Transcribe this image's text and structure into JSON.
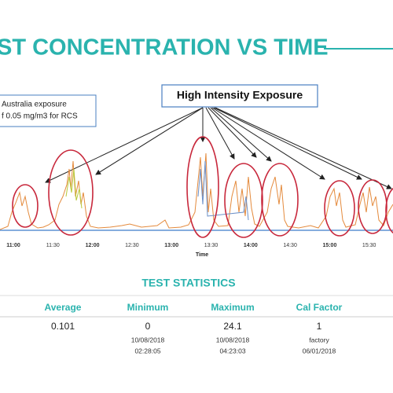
{
  "title": "ST CONCENTRATION VS TIME",
  "annotation": {
    "lines": [
      "Australia exposure",
      "f 0.05 mg/m3 for RCS"
    ]
  },
  "callout": "High Intensity Exposure",
  "chart": {
    "x_axis_label": "Time",
    "xticks": [
      "11:00",
      "11:30",
      "12:00",
      "12:30",
      "13:00",
      "13:30",
      "14:00",
      "14:30",
      "15:00",
      "15:30"
    ]
  },
  "statistics": {
    "title": "TEST STATISTICS",
    "columns": [
      {
        "header": "Average",
        "value": "0.101",
        "details": []
      },
      {
        "header": "Minimum",
        "value": "0",
        "details": [
          "10/08/2018",
          "02:28:05"
        ]
      },
      {
        "header": "Maximum",
        "value": "24.1",
        "details": [
          "10/08/2018",
          "04:23:03"
        ]
      },
      {
        "header": "Cal Factor",
        "value": "1",
        "details": [
          "factory",
          "06/01/2018"
        ]
      }
    ]
  }
}
